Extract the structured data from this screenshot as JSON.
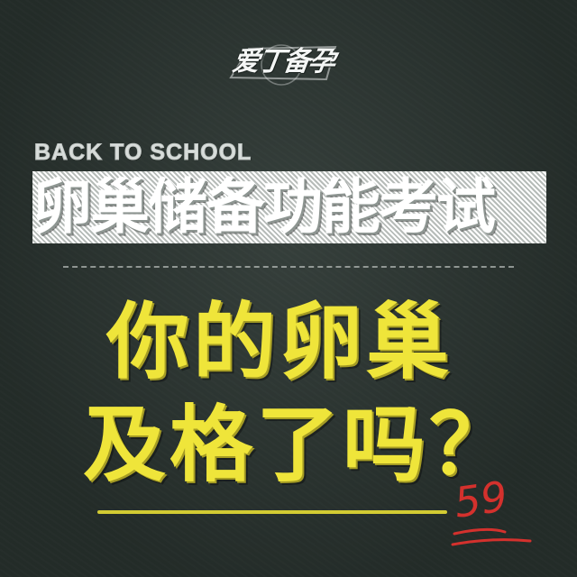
{
  "logo": {
    "text": "爱丁备孕"
  },
  "header": {
    "subtitle": "BACK TO SCHOOL",
    "title": "卵巢储备功能考试"
  },
  "question": {
    "line1": "你的卵巢",
    "line2": "及格了吗？"
  },
  "score": {
    "value": "59"
  },
  "colors": {
    "background": "#2b3531",
    "title": "#ffffff",
    "question": "#efe53a",
    "score": "#d4312d"
  }
}
